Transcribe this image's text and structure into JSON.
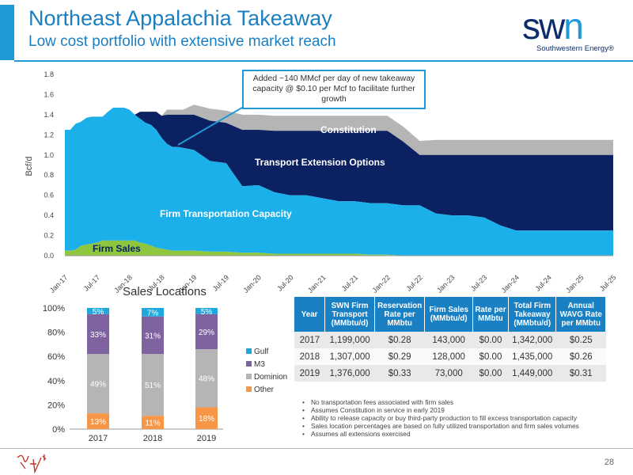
{
  "header": {
    "title": "Northeast Appalachia Takeaway",
    "subtitle": "Low cost portfolio with extensive market reach"
  },
  "logo": {
    "mark_main": "sw",
    "mark_accent": "n",
    "company": "Southwestern Energy®"
  },
  "callout": {
    "text": "Added ~140 MMcf per day of new takeaway capacity @ $0.10 per Mcf to facilitate further growth"
  },
  "colors": {
    "firm_transport": "#1cb0ea",
    "transport_ext": "#0b2161",
    "constitution": "#b5b5b5",
    "firm_sales": "#8ec63f",
    "gulf": "#1ea8e0",
    "m3": "#7f63a1",
    "dominion": "#b5b5b5",
    "other": "#f79646",
    "table_header": "#1a80c4"
  },
  "chart_data": [
    {
      "type": "area",
      "ylabel": "Bcf/d",
      "ylim": [
        0,
        1.8
      ],
      "yticks": [
        "0.0",
        "0.2",
        "0.4",
        "0.6",
        "0.8",
        "1.0",
        "1.2",
        "1.4",
        "1.6",
        "1.8"
      ],
      "xtick_labels": [
        "Jan-17",
        "Jul-17",
        "Jan-18",
        "Jul-18",
        "Jan-19",
        "Jul-19",
        "Jan-20",
        "Jul-20",
        "Jan-21",
        "Jul-21",
        "Jan-22",
        "Jul-22",
        "Jan-23",
        "Jul-23",
        "Jan-24",
        "Jul-24",
        "Jan-25",
        "Jul-25"
      ],
      "stacked": true,
      "x_months": [
        0,
        1,
        2,
        3,
        4,
        5,
        6,
        7,
        8,
        9,
        10,
        11,
        12,
        13,
        14,
        15,
        16,
        17,
        18,
        19,
        20,
        21,
        22,
        24,
        27,
        30,
        33,
        36,
        39,
        42,
        45,
        48,
        51,
        54,
        57,
        60,
        63,
        66,
        69,
        72,
        75,
        78,
        81,
        84,
        87,
        90,
        93,
        96,
        99,
        102
      ],
      "series": [
        {
          "name": "Firm Sales",
          "values": [
            0.05,
            0.05,
            0.06,
            0.1,
            0.11,
            0.12,
            0.13,
            0.15,
            0.15,
            0.15,
            0.15,
            0.15,
            0.15,
            0.15,
            0.13,
            0.12,
            0.1,
            0.08,
            0.07,
            0.06,
            0.05,
            0.05,
            0.05,
            0.05,
            0.04,
            0.04,
            0.03,
            0.03,
            0.02,
            0.02,
            0.02,
            0.02,
            0.02,
            0.02,
            0.01,
            0.01,
            0,
            0,
            0,
            0,
            0,
            0,
            0,
            0,
            0,
            0,
            0,
            0,
            0,
            0
          ]
        },
        {
          "name": "Firm Transportation Capacity",
          "values": [
            1.2,
            1.2,
            1.25,
            1.23,
            1.26,
            1.26,
            1.25,
            1.23,
            1.28,
            1.32,
            1.32,
            1.32,
            1.3,
            1.25,
            1.23,
            1.2,
            1.2,
            1.17,
            1.1,
            1.05,
            1.03,
            1.03,
            1.02,
            1.0,
            0.9,
            0.88,
            0.66,
            0.67,
            0.61,
            0.58,
            0.58,
            0.55,
            0.52,
            0.52,
            0.51,
            0.51,
            0.5,
            0.5,
            0.42,
            0.4,
            0.4,
            0.38,
            0.3,
            0.25,
            0.25,
            0.25,
            0.25,
            0.25,
            0.25,
            0.25
          ]
        },
        {
          "name": "Transport Extension Options",
          "values": [
            0,
            0,
            0,
            0,
            0,
            0,
            0,
            0,
            0,
            0,
            0,
            0,
            0,
            0,
            0.07,
            0.11,
            0.13,
            0.18,
            0.22,
            0.29,
            0.32,
            0.32,
            0.33,
            0.35,
            0.4,
            0.4,
            0.56,
            0.55,
            0.61,
            0.64,
            0.64,
            0.67,
            0.7,
            0.7,
            0.72,
            0.72,
            0.63,
            0.5,
            0.58,
            0.6,
            0.6,
            0.62,
            0.7,
            0.75,
            0.75,
            0.75,
            0.75,
            0.75,
            0.75,
            0.75
          ]
        },
        {
          "name": "Constitution",
          "values": [
            0,
            0,
            0,
            0,
            0,
            0,
            0,
            0,
            0,
            0,
            0,
            0,
            0,
            0,
            0,
            0,
            0,
            0,
            0,
            0.05,
            0.05,
            0.05,
            0.05,
            0.1,
            0.12,
            0.12,
            0.15,
            0.15,
            0.15,
            0.15,
            0.15,
            0.15,
            0.15,
            0.15,
            0.15,
            0.15,
            0.15,
            0.14,
            0.15,
            0.15,
            0.15,
            0.15,
            0.15,
            0.15,
            0.15,
            0.15,
            0.15,
            0.15,
            0.15,
            0.15
          ]
        }
      ],
      "annotations": [
        "Constitution",
        "Transport Extension Options",
        "Firm Transportation Capacity",
        "Firm Sales"
      ]
    },
    {
      "type": "bar",
      "stacked": true,
      "title": "Sales Locations",
      "categories": [
        "2017",
        "2018",
        "2019"
      ],
      "yticks": [
        "0%",
        "20%",
        "40%",
        "60%",
        "80%",
        "100%"
      ],
      "ylim": [
        0,
        100
      ],
      "series": [
        {
          "name": "Other",
          "values": [
            13,
            11,
            18
          ]
        },
        {
          "name": "Dominion",
          "values": [
            49,
            51,
            48
          ]
        },
        {
          "name": "M3",
          "values": [
            33,
            31,
            29
          ]
        },
        {
          "name": "Gulf",
          "values": [
            5,
            7,
            5
          ]
        }
      ],
      "legend": [
        "Gulf",
        "M3",
        "Dominion",
        "Other"
      ],
      "legend_position": "right"
    }
  ],
  "table": {
    "headers": [
      "Year",
      "SWN Firm Transport (MMbtu/d)",
      "Reservation Rate per MMbtu",
      "Firm Sales (MMbtu/d)",
      "Rate per MMbtu",
      "Total Firm Takeaway (MMbtu/d)",
      "Annual WAVG Rate per MMbtu"
    ],
    "rows": [
      [
        "2017",
        "1,199,000",
        "$0.28",
        "143,000",
        "$0.00",
        "1,342,000",
        "$0.25"
      ],
      [
        "2018",
        "1,307,000",
        "$0.29",
        "128,000",
        "$0.00",
        "1,435,000",
        "$0.26"
      ],
      [
        "2019",
        "1,376,000",
        "$0.33",
        "73,000",
        "$0.00",
        "1,449,000",
        "$0.31"
      ]
    ]
  },
  "notes": [
    "No transportation fees associated with firm sales",
    "Assumes Constitution in service in early 2019",
    "Ability to release capacity or buy third-party production to fill excess transportation capacity",
    "Sales location percentages are based on fully utilized transportation and firm sales volumes",
    "Assumes all extensions exercised"
  ],
  "footer": {
    "page_number": "28"
  }
}
